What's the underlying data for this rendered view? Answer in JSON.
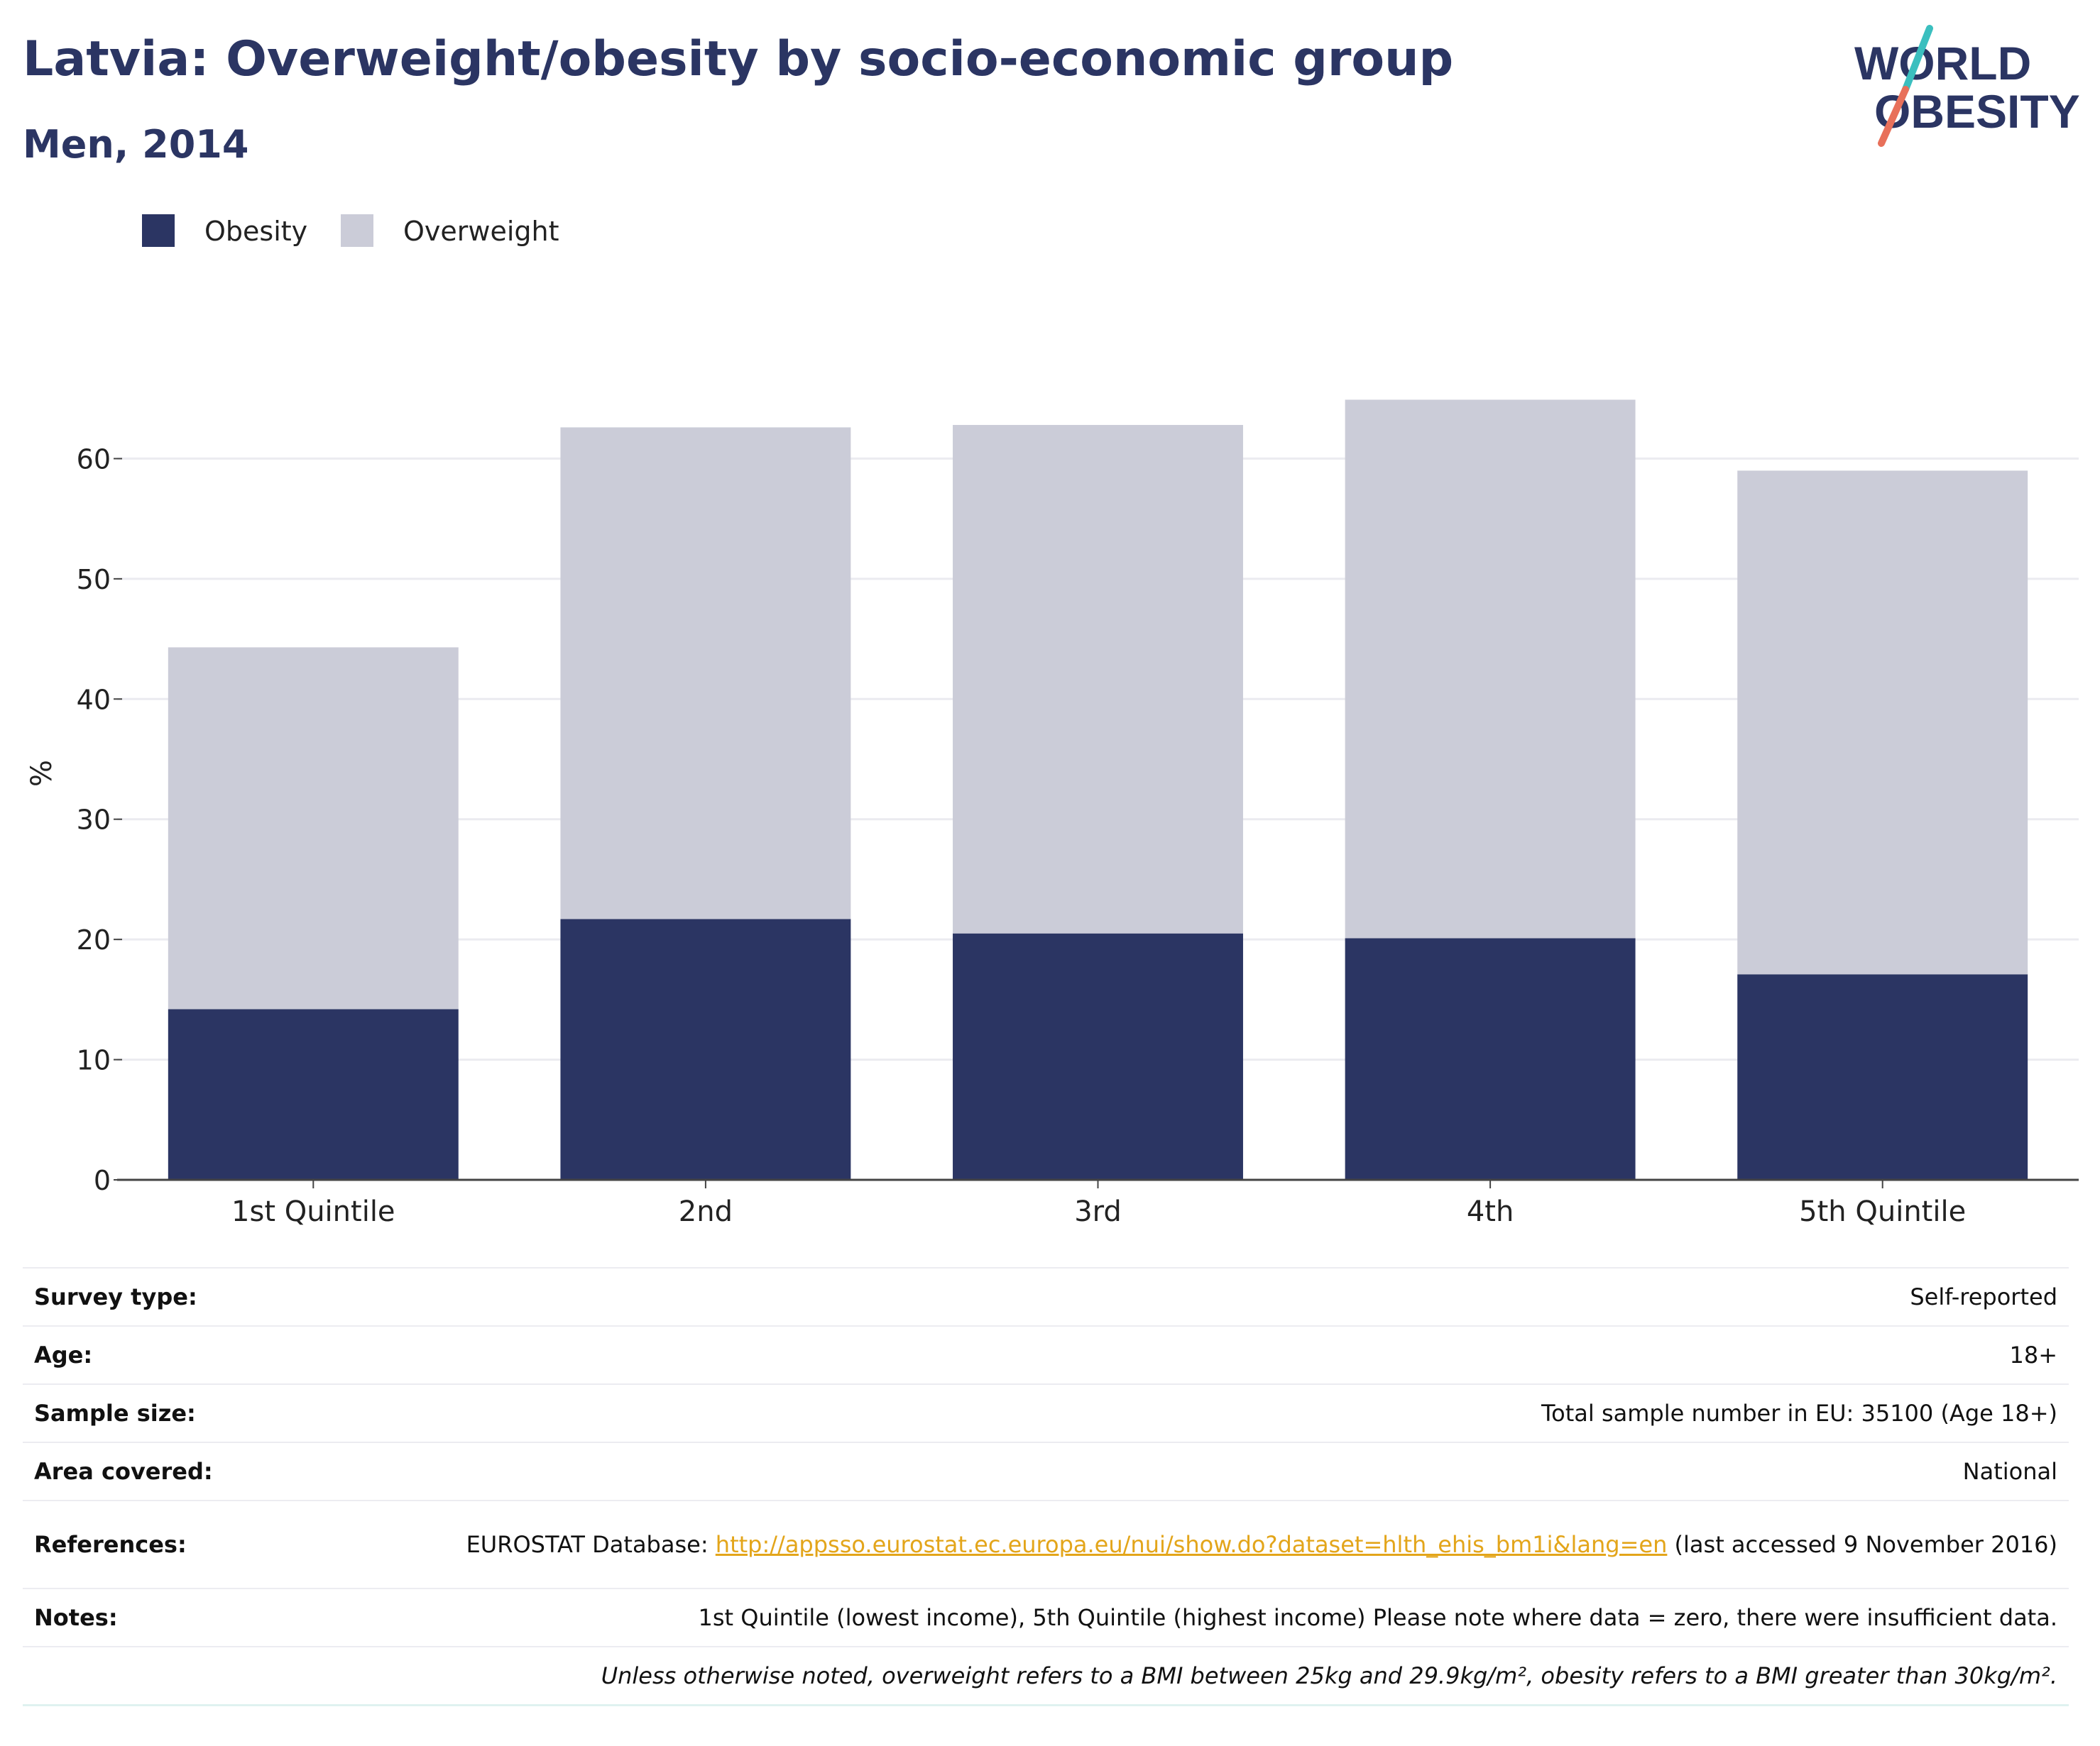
{
  "header": {
    "title": "Latvia: Overweight/obesity by socio-economic group",
    "subtitle": "Men, 2014"
  },
  "logo": {
    "line1": "WORLD",
    "line2": "OBESITY",
    "colors": {
      "text": "#2b3563",
      "slash_top": "#3bbfbf",
      "slash_bottom": "#e8705a"
    }
  },
  "chart_data": {
    "type": "bar",
    "stacked": true,
    "categories": [
      "1st Quintile",
      "2nd",
      "3rd",
      "4th",
      "5th Quintile"
    ],
    "series": [
      {
        "name": "Obesity",
        "color": "#2b3563",
        "values": [
          14.2,
          21.7,
          20.5,
          20.1,
          17.1
        ]
      },
      {
        "name": "Overweight",
        "color": "#cbccd8",
        "values": [
          30.1,
          40.9,
          42.3,
          44.8,
          41.9
        ]
      }
    ],
    "ylabel": "%",
    "xlabel": "",
    "ylim": [
      0,
      70
    ],
    "yticks": [
      0,
      10,
      20,
      30,
      40,
      50,
      60
    ],
    "grid": true,
    "legend": "top-left"
  },
  "info": {
    "rows": [
      {
        "key": "Survey type:",
        "value": "Self-reported"
      },
      {
        "key": "Age:",
        "value": "18+"
      },
      {
        "key": "Sample size:",
        "value": "Total sample number in EU: 35100 (Age 18+)"
      },
      {
        "key": "Area covered:",
        "value": "National"
      }
    ],
    "references": {
      "key": "References:",
      "prefix": "EUROSTAT Database: ",
      "link": "http://appsso.eurostat.ec.europa.eu/nui/show.do?dataset=hlth_ehis_bm1i&lang=en",
      "suffix": " (last accessed 9 November 2016)"
    },
    "notes": {
      "key": "Notes:",
      "value": "1st Quintile (lowest income), 5th Quintile (highest income) Please note where data = zero, there were insufficient data."
    },
    "footnote": "Unless otherwise noted, overweight refers to a BMI between 25kg and 29.9kg/m², obesity refers to a BMI greater than 30kg/m²."
  }
}
